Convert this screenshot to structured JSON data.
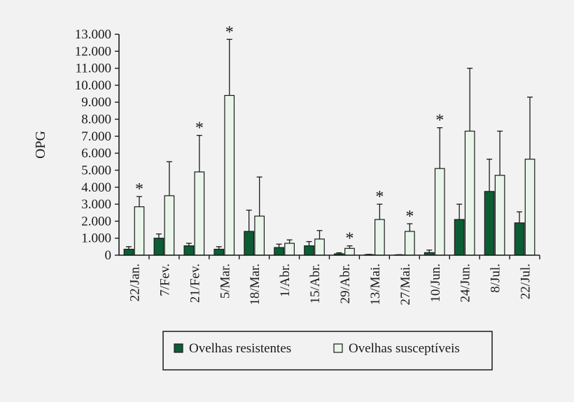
{
  "chart_data": {
    "type": "bar",
    "title": "",
    "xlabel": "",
    "ylabel": "OPG",
    "ylim": [
      0,
      13000
    ],
    "yticks": [
      {
        "value": 0,
        "label": "0"
      },
      {
        "value": 1000,
        "label": "1.000"
      },
      {
        "value": 2000,
        "label": "2.000"
      },
      {
        "value": 3000,
        "label": "3.000"
      },
      {
        "value": 4000,
        "label": "4.000"
      },
      {
        "value": 5000,
        "label": "5.000"
      },
      {
        "value": 6000,
        "label": "6.000"
      },
      {
        "value": 7000,
        "label": "7.000"
      },
      {
        "value": 8000,
        "label": "8.000"
      },
      {
        "value": 9000,
        "label": "9.000"
      },
      {
        "value": 10000,
        "label": "10.000"
      },
      {
        "value": 11000,
        "label": "11.000"
      },
      {
        "value": 12000,
        "label": "12.000"
      },
      {
        "value": 13000,
        "label": "13.000"
      }
    ],
    "categories": [
      "22/Jan.",
      "7/Fev.",
      "21/Fev.",
      "5/Mar.",
      "18/Mar.",
      "1/Abr.",
      "15/Abr.",
      "29/Abr.",
      "13/Mai.",
      "27/Mai.",
      "10/Jun.",
      "24/Jun.",
      "8/Jul.",
      "22/Jul."
    ],
    "series": [
      {
        "name": "Ovelhas resistentes",
        "color": "#0b5e34",
        "values": [
          350,
          1000,
          550,
          350,
          1400,
          450,
          550,
          80,
          30,
          20,
          150,
          2100,
          3750,
          1900
        ],
        "errors": [
          150,
          250,
          150,
          150,
          1250,
          200,
          250,
          60,
          20,
          10,
          150,
          900,
          1900,
          650
        ]
      },
      {
        "name": "Ovelhas susceptíveis",
        "color": "#e9f5ea",
        "values": [
          2850,
          3500,
          4900,
          9400,
          2300,
          700,
          950,
          400,
          2100,
          1400,
          5100,
          7300,
          4700,
          5650
        ],
        "errors": [
          600,
          2000,
          2150,
          3300,
          2300,
          200,
          500,
          150,
          900,
          450,
          2400,
          3700,
          2600,
          3650
        ]
      }
    ],
    "significance": [
      "*",
      "",
      "*",
      "*",
      "",
      "",
      "",
      "*",
      "*",
      "*",
      "*",
      "",
      "",
      ""
    ],
    "grid": false,
    "legend_position": "bottom"
  },
  "colors": {
    "axis": "#1a1a1a",
    "bar_stroke": "#1a1a1a"
  }
}
